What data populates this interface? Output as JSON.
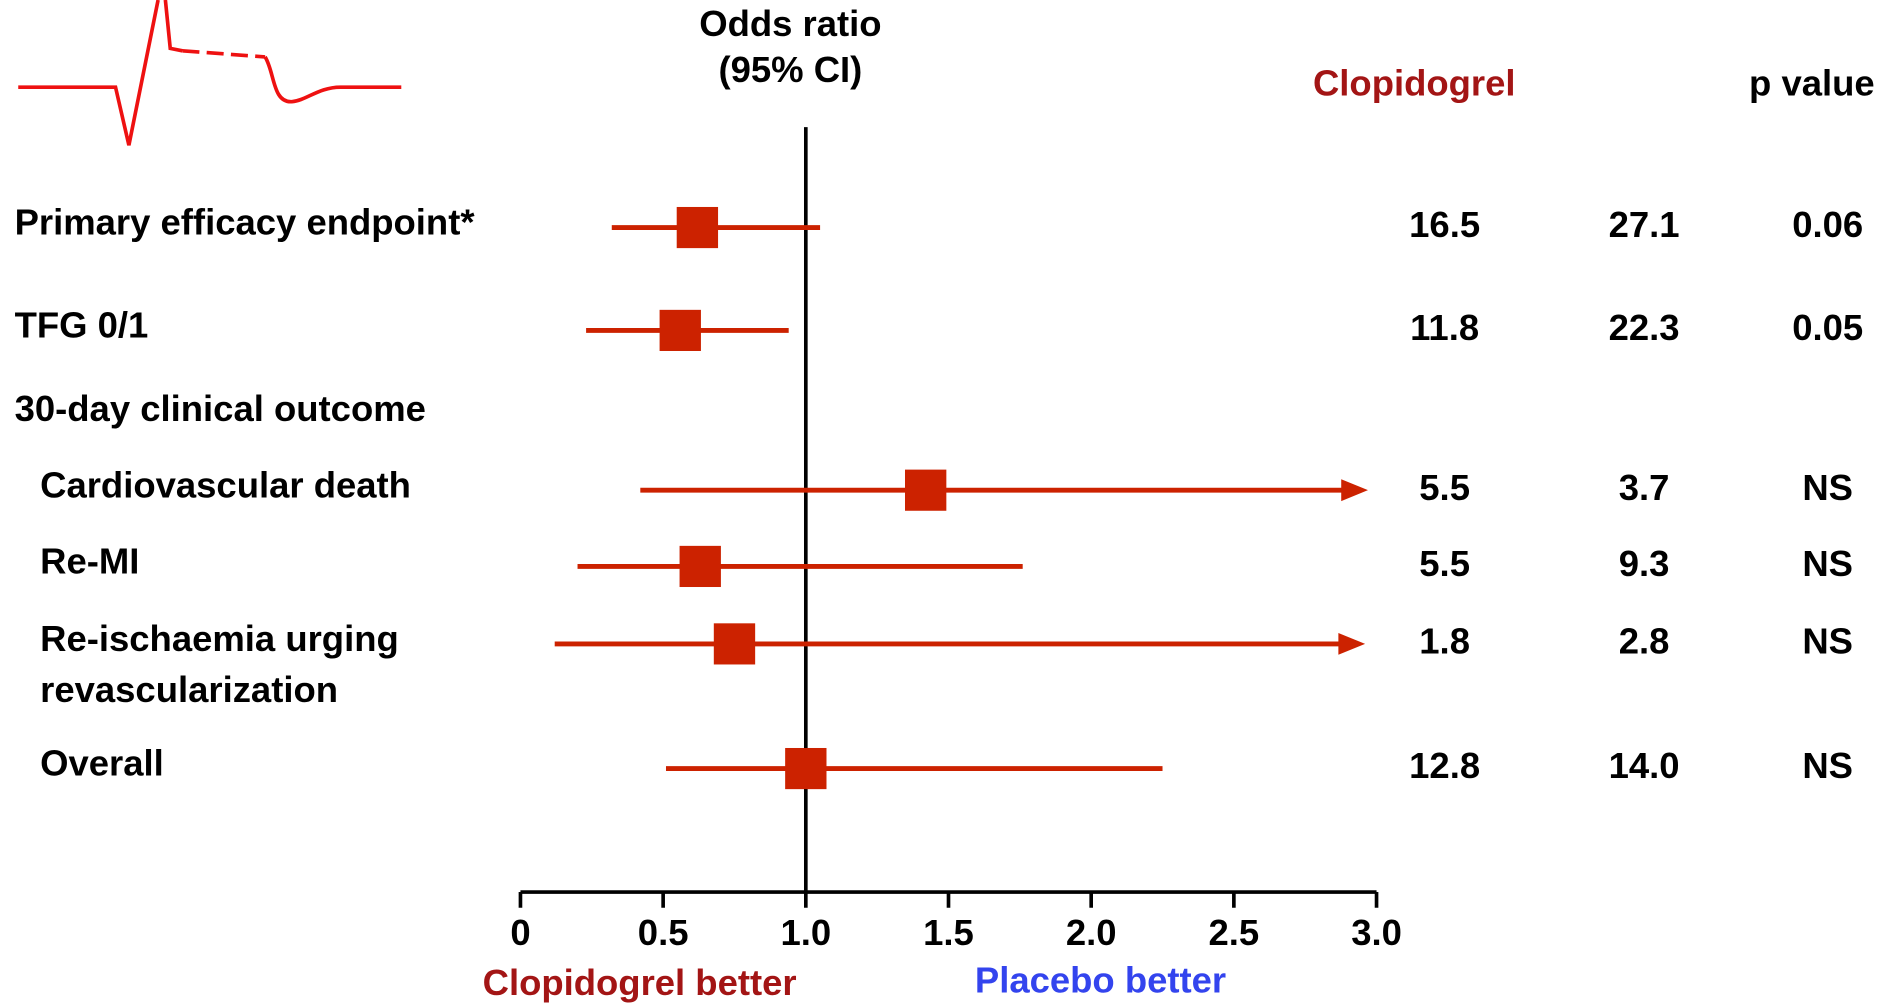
{
  "chart_data": {
    "type": "forest",
    "title": [
      "Odds ratio",
      "(95% CI)"
    ],
    "columns": [
      "Clopidogrel",
      null,
      "p value"
    ],
    "rows": [
      {
        "label": [
          "Primary efficacy endpoint*"
        ],
        "level": 0,
        "estimate": 0.62,
        "ci_low": 0.32,
        "ci_high": 1.05,
        "arrow": false,
        "values": [
          "16.5",
          "27.1",
          "0.06"
        ]
      },
      {
        "label": [
          "TFG 0/1"
        ],
        "level": 0,
        "estimate": 0.56,
        "ci_low": 0.23,
        "ci_high": 0.94,
        "arrow": false,
        "values": [
          "11.8",
          "22.3",
          "0.05"
        ]
      },
      {
        "label": [
          "30-day clinical outcome"
        ],
        "level": 0
      },
      {
        "label": [
          "Cardiovascular death"
        ],
        "level": 1,
        "estimate": 1.42,
        "ci_low": 0.42,
        "ci_high": 2.97,
        "arrow": true,
        "values": [
          "5.5",
          "3.7",
          "NS"
        ]
      },
      {
        "label": [
          "Re-MI"
        ],
        "level": 1,
        "estimate": 0.63,
        "ci_low": 0.2,
        "ci_high": 1.76,
        "arrow": false,
        "values": [
          "5.5",
          "9.3",
          "NS"
        ]
      },
      {
        "label": [
          "Re-ischaemia urging",
          "revascularization"
        ],
        "level": 1,
        "estimate": 0.75,
        "ci_low": 0.12,
        "ci_high": 2.96,
        "arrow": true,
        "values": [
          "1.8",
          "2.8",
          "NS"
        ]
      },
      {
        "label": [
          "Overall"
        ],
        "level": 1,
        "estimate": 1.0,
        "ci_low": 0.51,
        "ci_high": 2.25,
        "arrow": false,
        "values": [
          "12.8",
          "14.0",
          "NS"
        ]
      }
    ],
    "xlim": [
      0,
      3
    ],
    "xticks": [
      0,
      0.5,
      {
        "value": 1,
        "label": "1.0"
      },
      1.5,
      {
        "value": 2,
        "label": "2.0"
      },
      2.5,
      {
        "value": 3,
        "label": "3.0"
      }
    ],
    "reference": 1,
    "color": "#cc2200",
    "better_labels": [
      {
        "text": "Clopidogrel better",
        "color": "#a31515"
      },
      {
        "text": "Placebo better",
        "color": "#3344ee"
      }
    ]
  }
}
